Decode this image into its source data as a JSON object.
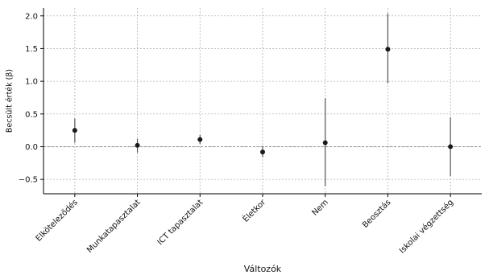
{
  "chart_data": {
    "type": "scatter",
    "subtype": "point-with-errorbars",
    "xlabel": "Változók",
    "ylabel": "Becsült érték (β)",
    "categories": [
      "Elköteleződés",
      "Munkatapasztalat",
      "ICT tapasztalat",
      "Életkor",
      "Nem",
      "Beosztás",
      "Iskolai végzettség"
    ],
    "estimates": [
      0.25,
      0.02,
      0.11,
      -0.08,
      0.06,
      1.49,
      0.0
    ],
    "ci_low": [
      0.06,
      -0.09,
      0.04,
      -0.16,
      -0.6,
      0.97,
      -0.45
    ],
    "ci_high": [
      0.43,
      0.12,
      0.18,
      0.01,
      0.74,
      2.04,
      0.45
    ],
    "ylim": [
      -0.72,
      2.12
    ],
    "yticks": [
      -0.5,
      0.0,
      0.5,
      1.0,
      1.5,
      2.0
    ],
    "ytick_labels": [
      "−0.5",
      "0.0",
      "0.5",
      "1.0",
      "1.5",
      "2.0"
    ],
    "reference_line_y": 0,
    "grid": true,
    "colors": {
      "point": "#1a1a1a",
      "errorbar": "#555555",
      "grid": "#b0b0b0",
      "reference_line": "#808080",
      "axis": "#000000"
    }
  }
}
